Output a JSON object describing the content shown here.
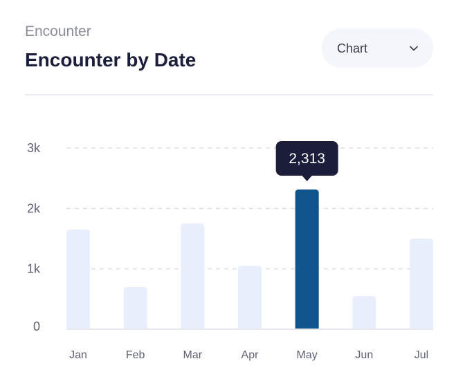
{
  "header": {
    "subtitle": "Encounter",
    "title": "Encounter by Date"
  },
  "dropdown": {
    "selected": "Chart",
    "icon": "chevron-down-icon"
  },
  "colors": {
    "bar": "#e9eefc",
    "highlight": "#0f548c",
    "tooltip_bg": "#1c1d3b",
    "tooltip_text": "#ffffff",
    "grid": "#dddfe6",
    "axis_text": "#5e6173"
  },
  "chart_data": {
    "type": "bar",
    "categories": [
      "Jan",
      "Feb",
      "Mar",
      "Apr",
      "May",
      "Jun",
      "Jul"
    ],
    "values": [
      1650,
      700,
      1750,
      1050,
      2313,
      550,
      1500
    ],
    "y_ticks": [
      0,
      1000,
      2000,
      3000
    ],
    "y_tick_labels": [
      "0",
      "1k",
      "2k",
      "3k"
    ],
    "ylim": [
      0,
      3000
    ],
    "grid": true,
    "highlight_index": 4,
    "tooltip": "2,313",
    "title": "",
    "xlabel": "",
    "ylabel": ""
  }
}
